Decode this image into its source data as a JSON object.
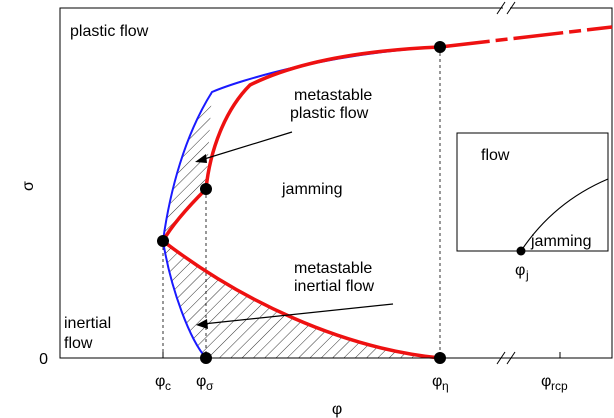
{
  "axes": {
    "ylabel": "σ",
    "xlabel": "φ",
    "y_zero_label": "0",
    "x_ticks": [
      {
        "main": "φ",
        "sub": "c"
      },
      {
        "main": "φ",
        "sub": "σ"
      },
      {
        "main": "φ",
        "sub": "η"
      },
      {
        "main": "φ",
        "sub": "rcp"
      }
    ]
  },
  "regions": {
    "plastic_flow": "plastic flow",
    "inertial_flow_line1": "inertial",
    "inertial_flow_line2": "flow",
    "jamming": "jamming"
  },
  "annotations": {
    "metastable_plastic_line1": "metastable",
    "metastable_plastic_line2": "plastic flow",
    "metastable_inertial_line1": "metastable",
    "metastable_inertial_line2": "inertial flow"
  },
  "inset": {
    "flow": "flow",
    "jamming": "jamming",
    "xtick_main": "φ",
    "xtick_sub": "j"
  },
  "colors": {
    "red_curve": "#ee1111",
    "blue_curve": "#1a1aff",
    "axis": "#000000"
  }
}
